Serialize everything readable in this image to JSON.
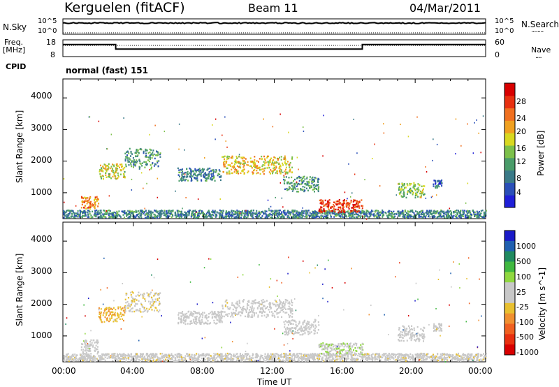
{
  "header": {
    "station": "Kerguelen (fitACF)",
    "beam": "Beam 11",
    "date": "04/Mar/2011"
  },
  "noise_panel": {
    "left_label": "N.Sky",
    "left_ticks": [
      "10^5",
      "10^0"
    ],
    "right_ticks": [
      "10^5",
      "10^0"
    ],
    "right_label": "N.Search",
    "right_legend_line": "........"
  },
  "freq_panel": {
    "left_label_1": "Freq.",
    "left_label_2": "[MHz]",
    "left_ticks": [
      "18",
      "8"
    ],
    "right_ticks": [
      "60",
      "0"
    ],
    "right_label": "Nave",
    "right_legend_line": "....",
    "freq_steps": [
      {
        "from_hour": 0,
        "to_hour": 3,
        "level": 0.72
      },
      {
        "from_hour": 3,
        "to_hour": 17,
        "level": 0.45
      },
      {
        "from_hour": 17,
        "to_hour": 24,
        "level": 0.72
      }
    ]
  },
  "cpid": {
    "label": "CPID",
    "value": "normal (fast) 151"
  },
  "power_panel": {
    "y_label": "Slant Range [km]",
    "y_ticks": [
      "4000",
      "3000",
      "2000",
      "1000"
    ],
    "colorbar_label": "Power [dB]",
    "colorbar_ticks": [
      "28",
      "24",
      "20",
      "16",
      "12",
      "8",
      "4"
    ],
    "colorbar_colors": [
      "#1f1fd8",
      "#2a4fb8",
      "#3a7a88",
      "#4a9c6a",
      "#7cc04a",
      "#d8d820",
      "#f0a020",
      "#f07020",
      "#e83010",
      "#d80000"
    ]
  },
  "velocity_panel": {
    "y_label": "Slant Range [km]",
    "y_ticks": [
      "4000",
      "3000",
      "2000",
      "1000"
    ],
    "colorbar_label": "Velocity [m s^-1]",
    "colorbar_ticks": [
      "1000",
      "500",
      "100",
      "25",
      "-25",
      "-100",
      "-500",
      "-1000"
    ],
    "colorbar_colors": [
      "#1a1ac8",
      "#2060b0",
      "#208a60",
      "#40b840",
      "#90d840",
      "#c8c8c8",
      "#c8c8c8",
      "#e8c030",
      "#f09030",
      "#f06020",
      "#e83010",
      "#d80000"
    ]
  },
  "x_axis": {
    "label": "Time UT",
    "ticks": [
      "00:00",
      "04:00",
      "08:00",
      "12:00",
      "16:00",
      "20:00",
      "00:00"
    ]
  },
  "chart_data": {
    "type": "heatmap",
    "title": "Kerguelen (fitACF) Beam 11 04/Mar/2011",
    "xlabel": "Time UT",
    "ylabel": "Slant Range [km]",
    "xlim": [
      0,
      24
    ],
    "ylim": [
      180,
      4600
    ],
    "series": [
      {
        "name": "Power [dB]",
        "clim": [
          0,
          30
        ],
        "features": [
          {
            "t_start": 0.0,
            "t_end": 24.0,
            "range_center": 350,
            "range_width": 150,
            "value": 8
          },
          {
            "t_start": 1.0,
            "t_end": 2.0,
            "range_center": 700,
            "range_width": 250,
            "value": 20
          },
          {
            "t_start": 2.0,
            "t_end": 3.5,
            "range_center": 1700,
            "range_width": 300,
            "value": 16
          },
          {
            "t_start": 3.5,
            "t_end": 5.5,
            "range_center": 2100,
            "range_width": 400,
            "value": 10
          },
          {
            "t_start": 6.5,
            "t_end": 9.0,
            "range_center": 1600,
            "range_width": 250,
            "value": 8
          },
          {
            "t_start": 9.0,
            "t_end": 13.0,
            "range_center": 1900,
            "range_width": 350,
            "value": 18
          },
          {
            "t_start": 12.5,
            "t_end": 14.5,
            "range_center": 1300,
            "range_width": 300,
            "value": 10
          },
          {
            "t_start": 14.5,
            "t_end": 17.0,
            "range_center": 600,
            "range_width": 250,
            "value": 26
          },
          {
            "t_start": 19.0,
            "t_end": 20.5,
            "range_center": 1100,
            "range_width": 300,
            "value": 14
          },
          {
            "t_start": 21.0,
            "t_end": 21.5,
            "range_center": 1300,
            "range_width": 150,
            "value": 6
          }
        ]
      },
      {
        "name": "Velocity [m s^-1]",
        "clim": [
          -1000,
          1000
        ],
        "features": [
          {
            "t_start": 0.0,
            "t_end": 24.0,
            "range_center": 350,
            "range_width": 150,
            "value": -40
          },
          {
            "t_start": 1.0,
            "t_end": 2.0,
            "range_center": 700,
            "range_width": 250,
            "value": 0
          },
          {
            "t_start": 2.0,
            "t_end": 3.5,
            "range_center": 1700,
            "range_width": 300,
            "value": -300
          },
          {
            "t_start": 3.5,
            "t_end": 5.5,
            "range_center": 2100,
            "range_width": 400,
            "value": -150
          },
          {
            "t_start": 6.5,
            "t_end": 9.0,
            "range_center": 1600,
            "range_width": 250,
            "value": 0
          },
          {
            "t_start": 9.0,
            "t_end": 13.0,
            "range_center": 1900,
            "range_width": 350,
            "value": -20
          },
          {
            "t_start": 12.5,
            "t_end": 14.5,
            "range_center": 1300,
            "range_width": 300,
            "value": 10
          },
          {
            "t_start": 14.5,
            "t_end": 17.0,
            "range_center": 600,
            "range_width": 250,
            "value": 120
          },
          {
            "t_start": 19.0,
            "t_end": 20.5,
            "range_center": 1100,
            "range_width": 300,
            "value": 0
          },
          {
            "t_start": 21.0,
            "t_end": 21.5,
            "range_center": 1300,
            "range_width": 150,
            "value": -30
          }
        ]
      }
    ],
    "grid": false,
    "legend": "colorbar-right"
  }
}
